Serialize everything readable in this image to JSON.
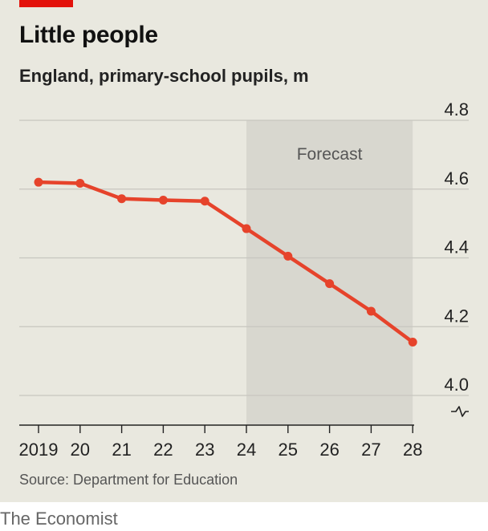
{
  "header": {
    "title": "Little people",
    "subtitle": "England, primary-school pupils, m"
  },
  "footer": {
    "source": "Source: Department for Education",
    "brand": "The Economist"
  },
  "colors": {
    "accent": "#e3120b",
    "line": "#e6432b",
    "background": "#e9e8df",
    "forecast_band": "#d8d7cf"
  },
  "chart_data": {
    "type": "line",
    "title": "Little people",
    "subtitle": "England, primary-school pupils, m",
    "x": [
      "2019",
      "20",
      "21",
      "22",
      "23",
      "24",
      "25",
      "26",
      "27",
      "28"
    ],
    "series": [
      {
        "values": [
          4.62,
          4.617,
          4.572,
          4.568,
          4.565,
          4.485,
          4.405,
          4.325,
          4.245,
          4.155
        ]
      }
    ],
    "yticks": [
      "4.8",
      "4.6",
      "4.4",
      "4.2",
      "4.0"
    ],
    "ylim": [
      4.0,
      4.8
    ],
    "axis_break": true,
    "y_axis_side": "right",
    "grid": true,
    "annotations": [
      {
        "label": "Forecast",
        "from": "24",
        "to": "28"
      }
    ]
  }
}
